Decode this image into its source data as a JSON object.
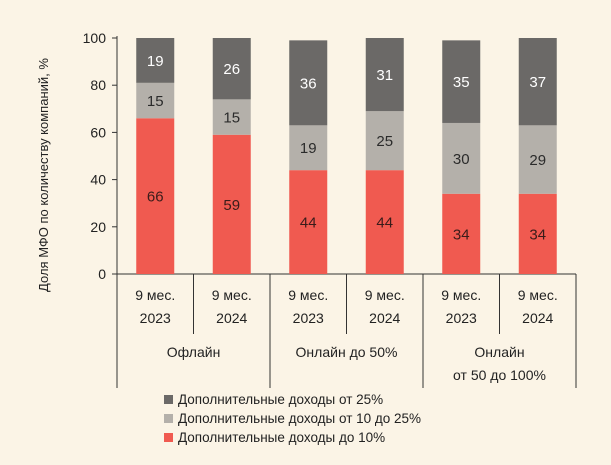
{
  "chart_data": {
    "type": "bar",
    "stacked": true,
    "ylabel": "Доля МФО по количеству компаний, %",
    "ylim": [
      0,
      100
    ],
    "yticks": [
      0,
      20,
      40,
      60,
      80,
      100
    ],
    "grid": false,
    "legend_position": "bottom-left",
    "periods": [
      [
        "9 мес.",
        "2023"
      ],
      [
        "9 мес.",
        "2024"
      ],
      [
        "9 мес.",
        "2023"
      ],
      [
        "9 мес.",
        "2024"
      ],
      [
        "9 мес.",
        "2023"
      ],
      [
        "9 мес.",
        "2024"
      ]
    ],
    "groups": [
      {
        "lines": [
          "Офлайн"
        ],
        "span": 2
      },
      {
        "lines": [
          "Онлайн до 50%"
        ],
        "span": 2
      },
      {
        "lines": [
          "Онлайн",
          "от 50 до 100%"
        ],
        "span": 2
      }
    ],
    "series": [
      {
        "name": "Дополнительные доходы до 10%",
        "color": "#f05a50",
        "values": [
          66,
          59,
          44,
          44,
          34,
          34
        ]
      },
      {
        "name": "Дополнительные доходы от 10 до 25%",
        "color": "#b4b0aa",
        "values": [
          15,
          15,
          19,
          25,
          30,
          29
        ]
      },
      {
        "name": "Дополнительные доходы от 25%",
        "color": "#6b6967",
        "values": [
          19,
          26,
          36,
          31,
          35,
          37
        ]
      }
    ],
    "legend_order": [
      2,
      1,
      0
    ]
  }
}
